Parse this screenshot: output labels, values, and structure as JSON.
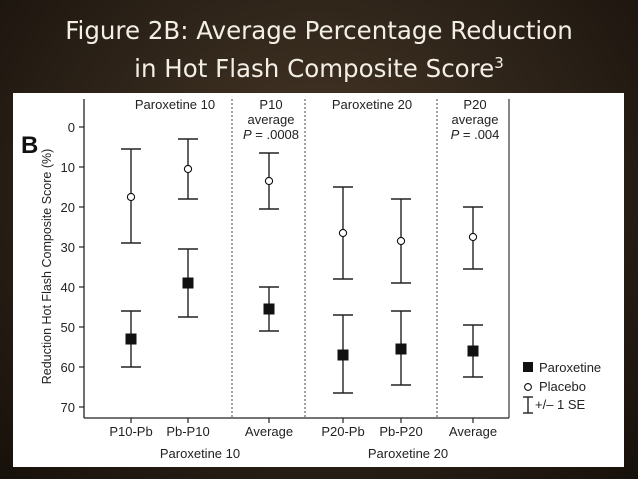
{
  "slide": {
    "title_line1": "Figure 2B: Average Percentage Reduction",
    "title_line2": "in Hot Flash Composite Score",
    "title_sup": "3"
  },
  "chart_data": {
    "type": "scatter",
    "panel_letter": "B",
    "ylabel": "Reduction Hot Flash Composite Score (%)",
    "ylim": [
      0,
      70
    ],
    "y_inverted": true,
    "yticks": [
      0,
      10,
      20,
      30,
      40,
      50,
      60,
      70
    ],
    "grid": false,
    "categories": [
      "P10-Pb",
      "Pb-P10",
      "Average",
      "P20-Pb",
      "Pb-P20",
      "Average"
    ],
    "series": [
      {
        "name": "Paroxetine",
        "marker": "filled-square",
        "color": "#111111",
        "values": [
          53,
          39,
          45.5,
          57,
          55.5,
          56
        ],
        "error_low": [
          46,
          30.5,
          40,
          47,
          46,
          49.5
        ],
        "error_high": [
          60,
          47.5,
          51,
          66.5,
          64.5,
          62.5
        ]
      },
      {
        "name": "Placebo",
        "marker": "open-circle",
        "color": "#111111",
        "values": [
          17.5,
          10.5,
          13.5,
          26.5,
          28.5,
          27.5
        ],
        "error_low": [
          5.5,
          3,
          6.5,
          15,
          18,
          20
        ],
        "error_high": [
          29,
          18,
          20.5,
          38,
          39,
          35.5
        ]
      }
    ],
    "error_legend": "+/– 1 SE",
    "group_labels": [
      "Paroxetine 10",
      "Paroxetine 20"
    ],
    "top_labels": [
      {
        "lines": [
          "Paroxetine 10"
        ]
      },
      {
        "lines": [
          "P10",
          "average",
          "P = .0008"
        ]
      },
      {
        "lines": [
          "Paroxetine 20"
        ]
      },
      {
        "lines": [
          "P20",
          "average",
          "P = .004"
        ]
      }
    ],
    "legend_position": "bottom-right"
  }
}
